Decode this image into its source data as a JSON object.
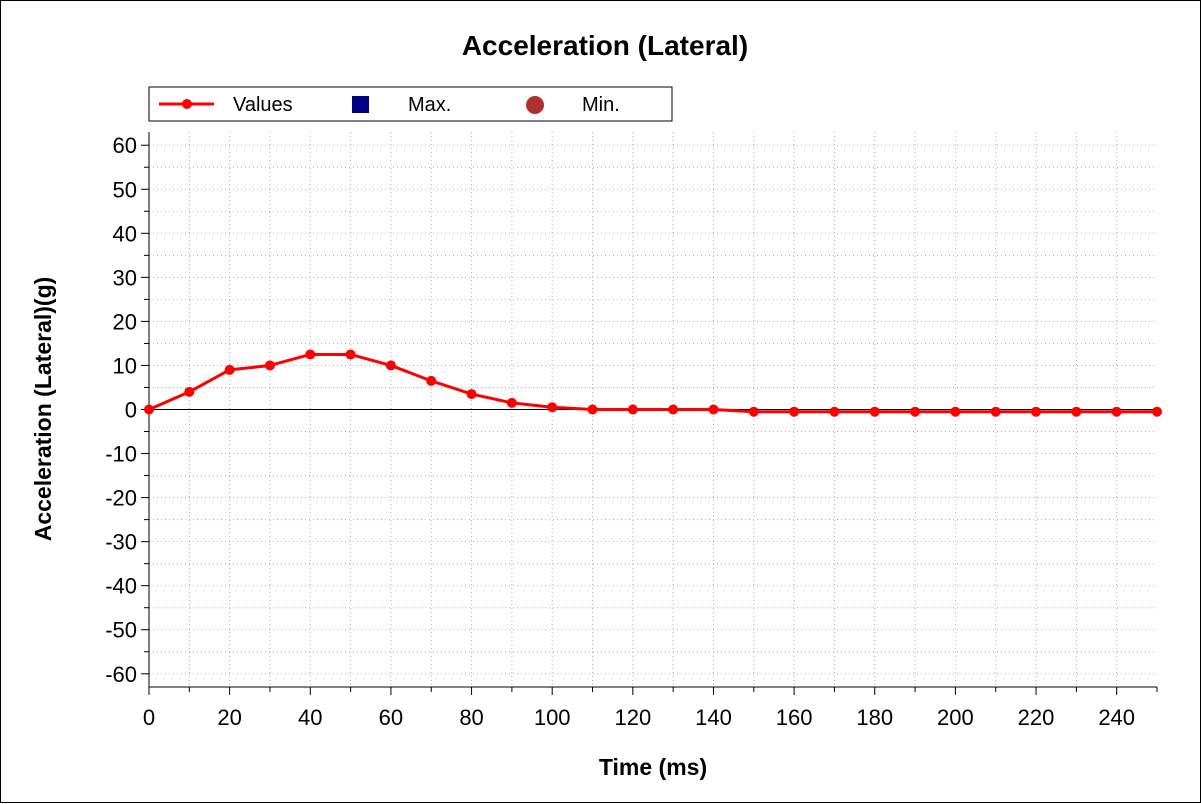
{
  "chart_data": {
    "type": "line",
    "title": "Acceleration (Lateral)",
    "xlabel": "Time (ms)",
    "ylabel": "Acceleration (Lateral)(g)",
    "xlim": [
      0,
      250
    ],
    "ylim": [
      -63,
      63
    ],
    "xticks": [
      0,
      20,
      40,
      60,
      80,
      100,
      120,
      140,
      160,
      180,
      200,
      220,
      240
    ],
    "yticks": [
      60,
      50,
      40,
      30,
      20,
      10,
      0,
      -10,
      -20,
      -30,
      -40,
      -50,
      -60
    ],
    "grid": true,
    "legend": {
      "position": "top-left",
      "entries": [
        {
          "label": "Values",
          "color": "#ff0000",
          "marker": "line-circle"
        },
        {
          "label": "Max.",
          "color": "#000080",
          "marker": "square"
        },
        {
          "label": "Min.",
          "color": "#b03030",
          "marker": "circle"
        }
      ]
    },
    "series": [
      {
        "name": "Values",
        "color": "#ff0000",
        "x": [
          0,
          10,
          20,
          30,
          40,
          50,
          60,
          70,
          80,
          90,
          100,
          110,
          120,
          130,
          140,
          150,
          160,
          170,
          180,
          190,
          200,
          210,
          220,
          230,
          240,
          250
        ],
        "y": [
          0,
          4,
          9,
          10,
          12.5,
          12.5,
          10,
          6.5,
          3.5,
          1.5,
          0.5,
          0,
          0,
          0,
          0,
          -0.5,
          -0.5,
          -0.5,
          -0.5,
          -0.5,
          -0.5,
          -0.5,
          -0.5,
          -0.5,
          -0.5,
          -0.5
        ]
      }
    ]
  }
}
